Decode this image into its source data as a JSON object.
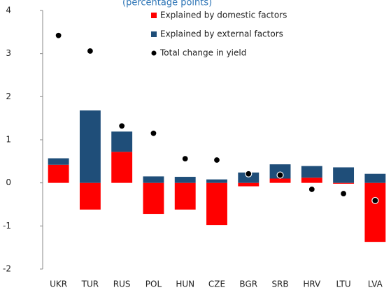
{
  "chart_data": {
    "type": "bar",
    "stacked": true,
    "subtitle": "(percentage points)",
    "categories": [
      "UKR",
      "TUR",
      "RUS",
      "POL",
      "HUN",
      "CZE",
      "BGR",
      "SRB",
      "HRV",
      "LTU",
      "LVA"
    ],
    "series": [
      {
        "name": "Explained by domestic factors",
        "color": "#ff0000",
        "values": [
          0.42,
          -0.62,
          0.72,
          -0.72,
          -0.62,
          -0.98,
          -0.08,
          0.1,
          0.12,
          -0.02,
          -1.37
        ]
      },
      {
        "name": "Explained by external factors",
        "color": "#1f4e79",
        "values": [
          0.15,
          1.68,
          0.47,
          0.15,
          0.14,
          0.08,
          0.24,
          0.33,
          0.27,
          0.36,
          0.21
        ]
      },
      {
        "name": "Total change in yield",
        "color": "#000000",
        "type": "scatter",
        "values": [
          3.42,
          3.06,
          1.32,
          1.15,
          0.56,
          0.53,
          0.21,
          0.18,
          -0.15,
          -0.25,
          -0.41
        ]
      }
    ],
    "ylim": [
      -2,
      4
    ],
    "yticks": [
      -2,
      -1,
      0,
      1,
      2,
      3,
      4
    ],
    "grid": false
  }
}
